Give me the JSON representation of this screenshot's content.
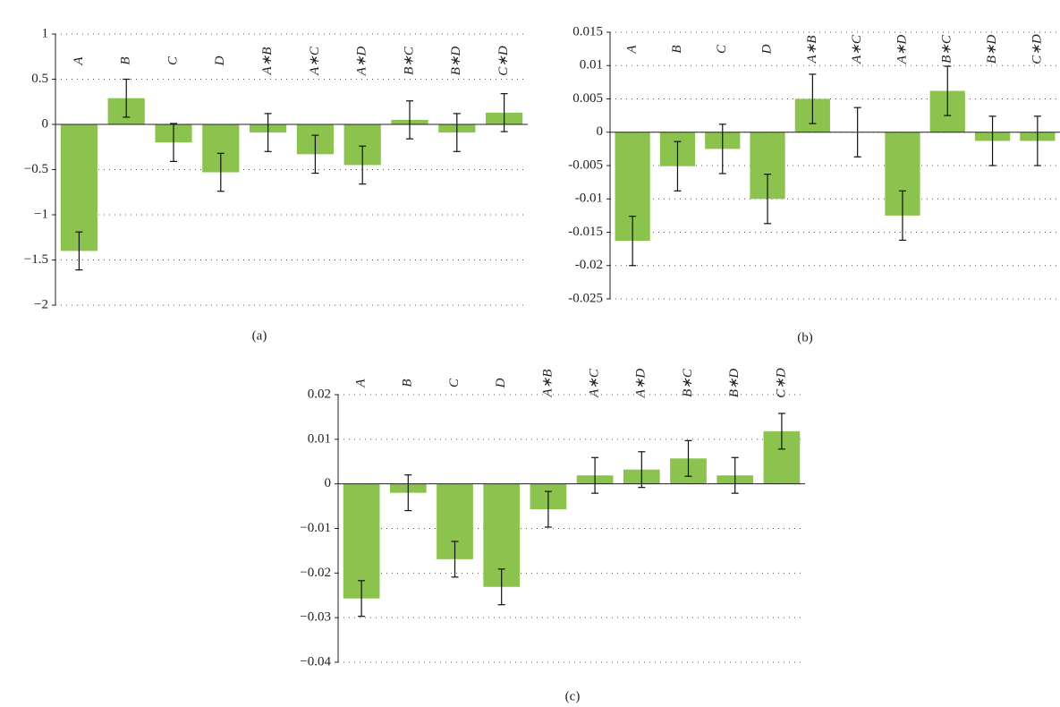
{
  "chart_data": [
    {
      "type": "bar",
      "caption": "(a)",
      "color": "#8cc34f",
      "categories": [
        "A",
        "B",
        "C",
        "D",
        "A∗B",
        "A∗C",
        "A∗D",
        "B∗C",
        "B∗D",
        "C∗D"
      ],
      "values": [
        -1.4,
        0.29,
        -0.2,
        -0.53,
        -0.09,
        -0.33,
        -0.45,
        0.05,
        -0.09,
        0.13
      ],
      "errors": [
        0.21,
        0.21,
        0.21,
        0.21,
        0.21,
        0.21,
        0.21,
        0.21,
        0.21,
        0.21
      ],
      "ylim": [
        -2,
        1
      ],
      "yticks": [
        {
          "value": -2,
          "label": "−2"
        },
        {
          "value": -1.5,
          "label": "−1.5"
        },
        {
          "value": -1,
          "label": "−1"
        },
        {
          "value": -0.5,
          "label": "−0.5"
        },
        0,
        0.5,
        1
      ],
      "grid": true
    },
    {
      "type": "bar",
      "caption": "(b)",
      "color": "#8cc34f",
      "categories": [
        "A",
        "B",
        "C",
        "D",
        "A∗B",
        "A∗C",
        "A∗D",
        "B∗C",
        "B∗D",
        "C∗D"
      ],
      "values": [
        -0.0163,
        -0.0051,
        -0.0025,
        -0.01,
        0.005,
        0,
        -0.0125,
        0.0062,
        -0.0013,
        -0.0013
      ],
      "errors": [
        0.0037,
        0.0037,
        0.0037,
        0.0037,
        0.0037,
        0.0037,
        0.0037,
        0.0037,
        0.0037,
        0.0037
      ],
      "ylim": [
        -0.025,
        0.015
      ],
      "yticks": [
        -0.025,
        -0.02,
        -0.015,
        -0.01,
        -0.005,
        0,
        0.005,
        0.01,
        0.015
      ],
      "grid": true
    },
    {
      "type": "bar",
      "caption": "(c)",
      "color": "#8cc34f",
      "categories": [
        "A",
        "B",
        "C",
        "D",
        "A∗B",
        "A∗C",
        "A∗D",
        "B∗C",
        "B∗D",
        "C∗D"
      ],
      "values": [
        -0.0257,
        -0.002,
        -0.0169,
        -0.0231,
        -0.0057,
        0.0019,
        0.0032,
        0.0057,
        0.0019,
        0.0118
      ],
      "errors": [
        0.004,
        0.004,
        0.004,
        0.004,
        0.004,
        0.004,
        0.004,
        0.004,
        0.004,
        0.004
      ],
      "ylim": [
        -0.04,
        0.02
      ],
      "yticks": [
        {
          "value": -0.04,
          "label": "−0.04"
        },
        {
          "value": -0.03,
          "label": "−0.03"
        },
        {
          "value": -0.02,
          "label": "−0.02"
        },
        {
          "value": -0.01,
          "label": "−0.01"
        },
        0,
        0.01,
        0.02
      ],
      "grid": true
    }
  ]
}
